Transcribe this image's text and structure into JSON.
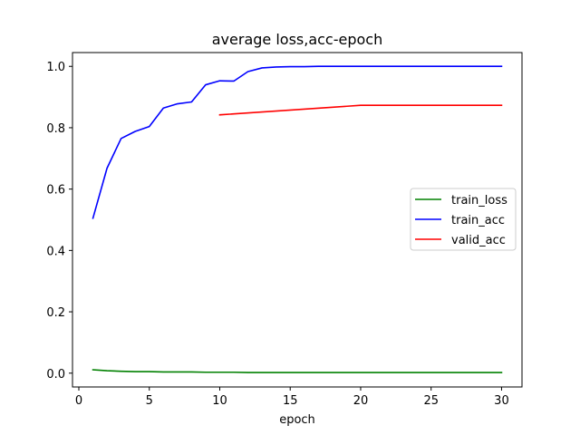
{
  "chart_data": {
    "type": "line",
    "title": "average loss,acc-epoch",
    "xlabel": "epoch",
    "ylabel": "",
    "xlim": [
      -0.45,
      31.45
    ],
    "ylim": [
      -0.045,
      1.045
    ],
    "xticks": [
      0,
      5,
      10,
      15,
      20,
      25,
      30
    ],
    "yticks": [
      0.0,
      0.2,
      0.4,
      0.6,
      0.8,
      1.0
    ],
    "ytick_labels": [
      "0.0",
      "0.2",
      "0.4",
      "0.6",
      "0.8",
      "1.0"
    ],
    "grid": false,
    "legend_position": "center-right",
    "series": [
      {
        "name": "train_loss",
        "color": "#008000",
        "x": [
          1,
          2,
          3,
          4,
          5,
          6,
          7,
          8,
          9,
          10,
          11,
          12,
          13,
          14,
          15,
          16,
          17,
          18,
          19,
          20,
          21,
          22,
          23,
          24,
          25,
          26,
          27,
          28,
          29,
          30
        ],
        "y": [
          0.011,
          0.008,
          0.006,
          0.005,
          0.005,
          0.004,
          0.004,
          0.004,
          0.003,
          0.003,
          0.003,
          0.002,
          0.002,
          0.002,
          0.002,
          0.002,
          0.002,
          0.002,
          0.002,
          0.002,
          0.002,
          0.002,
          0.002,
          0.002,
          0.002,
          0.002,
          0.002,
          0.002,
          0.002,
          0.002
        ]
      },
      {
        "name": "train_acc",
        "color": "#0000ff",
        "x": [
          1,
          2,
          3,
          4,
          5,
          6,
          7,
          8,
          9,
          10,
          11,
          12,
          13,
          14,
          15,
          16,
          17,
          18,
          19,
          20,
          21,
          22,
          23,
          24,
          25,
          26,
          27,
          28,
          29,
          30
        ],
        "y": [
          0.505,
          0.668,
          0.765,
          0.788,
          0.804,
          0.864,
          0.878,
          0.884,
          0.94,
          0.953,
          0.952,
          0.983,
          0.995,
          0.998,
          0.999,
          0.999,
          1.0,
          1.0,
          1.0,
          1.0,
          1.0,
          1.0,
          1.0,
          1.0,
          1.0,
          1.0,
          1.0,
          1.0,
          1.0,
          1.0
        ]
      },
      {
        "name": "valid_acc",
        "color": "#ff0000",
        "x": [
          10,
          20,
          30
        ],
        "y": [
          0.842,
          0.873,
          0.873
        ]
      }
    ]
  }
}
